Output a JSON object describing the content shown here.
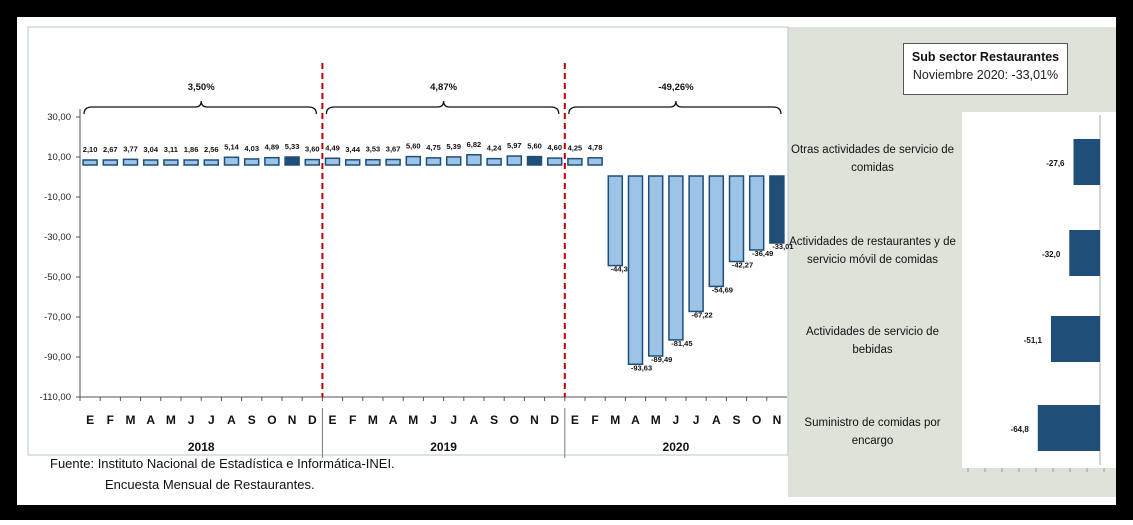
{
  "chart_data": [
    {
      "type": "bar",
      "title": "",
      "ylim": [
        -110,
        30
      ],
      "yticks": [
        "30,00",
        "10,00",
        "-10,00",
        "-30,00",
        "-50,00",
        "-70,00",
        "-90,00",
        "-110,00"
      ],
      "yticks_values": [
        30,
        10,
        -10,
        -30,
        -50,
        -70,
        -90,
        -110
      ],
      "months": [
        "E",
        "F",
        "M",
        "A",
        "M",
        "J",
        "J",
        "A",
        "S",
        "O",
        "N",
        "D",
        "E",
        "F",
        "M",
        "A",
        "M",
        "J",
        "J",
        "A",
        "S",
        "O",
        "N",
        "D",
        "E",
        "F",
        "M",
        "A",
        "M",
        "J",
        "J",
        "A",
        "S",
        "O",
        "N"
      ],
      "values": [
        2.1,
        2.67,
        3.77,
        3.04,
        3.11,
        1.86,
        2.56,
        5.14,
        4.03,
        4.89,
        5.33,
        3.6,
        4.49,
        3.44,
        3.53,
        3.67,
        5.6,
        4.75,
        5.39,
        6.82,
        4.24,
        5.97,
        5.6,
        4.6,
        4.25,
        4.78,
        -44.3,
        -93.63,
        -89.49,
        -81.45,
        -67.22,
        -54.69,
        -42.27,
        -36.49,
        -33.01
      ],
      "value_labels": [
        "2,10",
        "2,67",
        "3,77",
        "3,04",
        "3,11",
        "1,86",
        "2,56",
        "5,14",
        "4,03",
        "4,89",
        "5,33",
        "3,60",
        "4,49",
        "3,44",
        "3,53",
        "3,67",
        "5,60",
        "4,75",
        "5,39",
        "6,82",
        "4,24",
        "5,97",
        "5,60",
        "4,60",
        "4,25",
        "4,78",
        "-44,30",
        "-93,63",
        "-89,49",
        "-81,45",
        "-67,22",
        "-54,69",
        "-42,27",
        "-36,49",
        "-33,01"
      ],
      "highlight_indices": [
        10,
        22,
        34
      ],
      "years": [
        "2018",
        "2019",
        "2020"
      ],
      "year_annotations": [
        "3,50%",
        "4,87%",
        "-49,26%"
      ],
      "colors": {
        "light": "#9DC3E6",
        "dark": "#1F4E79",
        "divider": "#C00000"
      }
    },
    {
      "type": "bar",
      "orientation": "horizontal",
      "categories": [
        "Otras actividades de servicio de comidas",
        "Actividades de restaurantes y de servicio móvil de comidas",
        "Actividades de servicio de bebidas",
        "Suministro de comidas por encargo"
      ],
      "values": [
        -27.6,
        -32.0,
        -51.1,
        -64.8
      ],
      "value_labels": [
        "-27,6",
        "-32,0",
        "-51,1",
        "-64,8"
      ],
      "color": "#1F4E79"
    }
  ],
  "annotation": {
    "title": "Sub sector Restaurantes",
    "subtitle": "Noviembre 2020: -33,01%"
  },
  "source": {
    "line1": "Fuente: Instituto Nacional de Estadística e Informática-INEI.",
    "line2": "Encuesta Mensual de Restaurantes."
  },
  "right_labels": [
    {
      "line1": "Otras actividades de servicio de",
      "line2": "comidas"
    },
    {
      "line1": "Actividades de restaurantes y de",
      "line2": "servicio móvil de comidas"
    },
    {
      "line1": "Actividades de servicio de",
      "line2": "bebidas"
    },
    {
      "line1": "Suministro de comidas por",
      "line2": "encargo"
    }
  ]
}
